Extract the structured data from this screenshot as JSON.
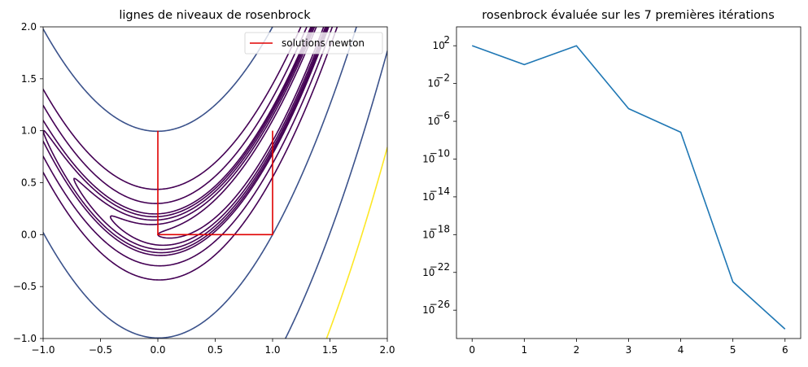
{
  "chart_data": [
    {
      "type": "line",
      "title": "lignes de niveaux de rosenbrock",
      "xlabel": "",
      "ylabel": "",
      "xlim": [
        -1.0,
        2.0
      ],
      "ylim": [
        -1.0,
        2.0
      ],
      "xticks": [
        "−1.0",
        "−0.5",
        "0.0",
        "0.5",
        "1.0",
        "1.5",
        "2.0"
      ],
      "yticks": [
        "−1.0",
        "−0.5",
        "0.0",
        "0.5",
        "1.0",
        "1.5",
        "2.0"
      ],
      "legend_position": "top-right",
      "grid": false,
      "contours": {
        "function": "rosenbrock",
        "levels": [
          {
            "value": 1,
            "color": "#440154"
          },
          {
            "value": 2,
            "color": "#440154"
          },
          {
            "value": 3,
            "color": "#440154"
          },
          {
            "value": 4,
            "color": "#440154"
          },
          {
            "value": 5,
            "color": "#440154"
          },
          {
            "value": 10,
            "color": "#440154"
          },
          {
            "value": 20,
            "color": "#440154"
          },
          {
            "value": 100,
            "color": "#3b528b"
          },
          {
            "value": 500,
            "color": "#3b528b"
          },
          {
            "value": 1000,
            "color": "#fde725"
          }
        ]
      },
      "series": [
        {
          "name": "solutions newton",
          "color": "#e00000",
          "x": [
            0.0,
            0.0,
            1.0,
            1.0
          ],
          "y": [
            1.0,
            0.0,
            0.0,
            1.0
          ]
        }
      ]
    },
    {
      "type": "line",
      "title": "rosenbrock évaluée sur les 7 premières itérations",
      "xlabel": "",
      "ylabel": "",
      "yscale": "log",
      "xlim": [
        -0.3,
        6.3
      ],
      "ylim": [
        1e-29,
        10000.0
      ],
      "xticks": [
        "0",
        "1",
        "2",
        "3",
        "4",
        "5",
        "6"
      ],
      "ytick_values": [
        2,
        -2,
        -6,
        -10,
        -14,
        -18,
        -22,
        -26
      ],
      "grid": false,
      "series": [
        {
          "color": "#1f77b4",
          "x": [
            0,
            1,
            2,
            3,
            4,
            5,
            6
          ],
          "y": [
            101,
            1.0,
            100,
            2.2e-05,
            7e-08,
            1e-23,
            1e-28
          ]
        }
      ]
    }
  ]
}
